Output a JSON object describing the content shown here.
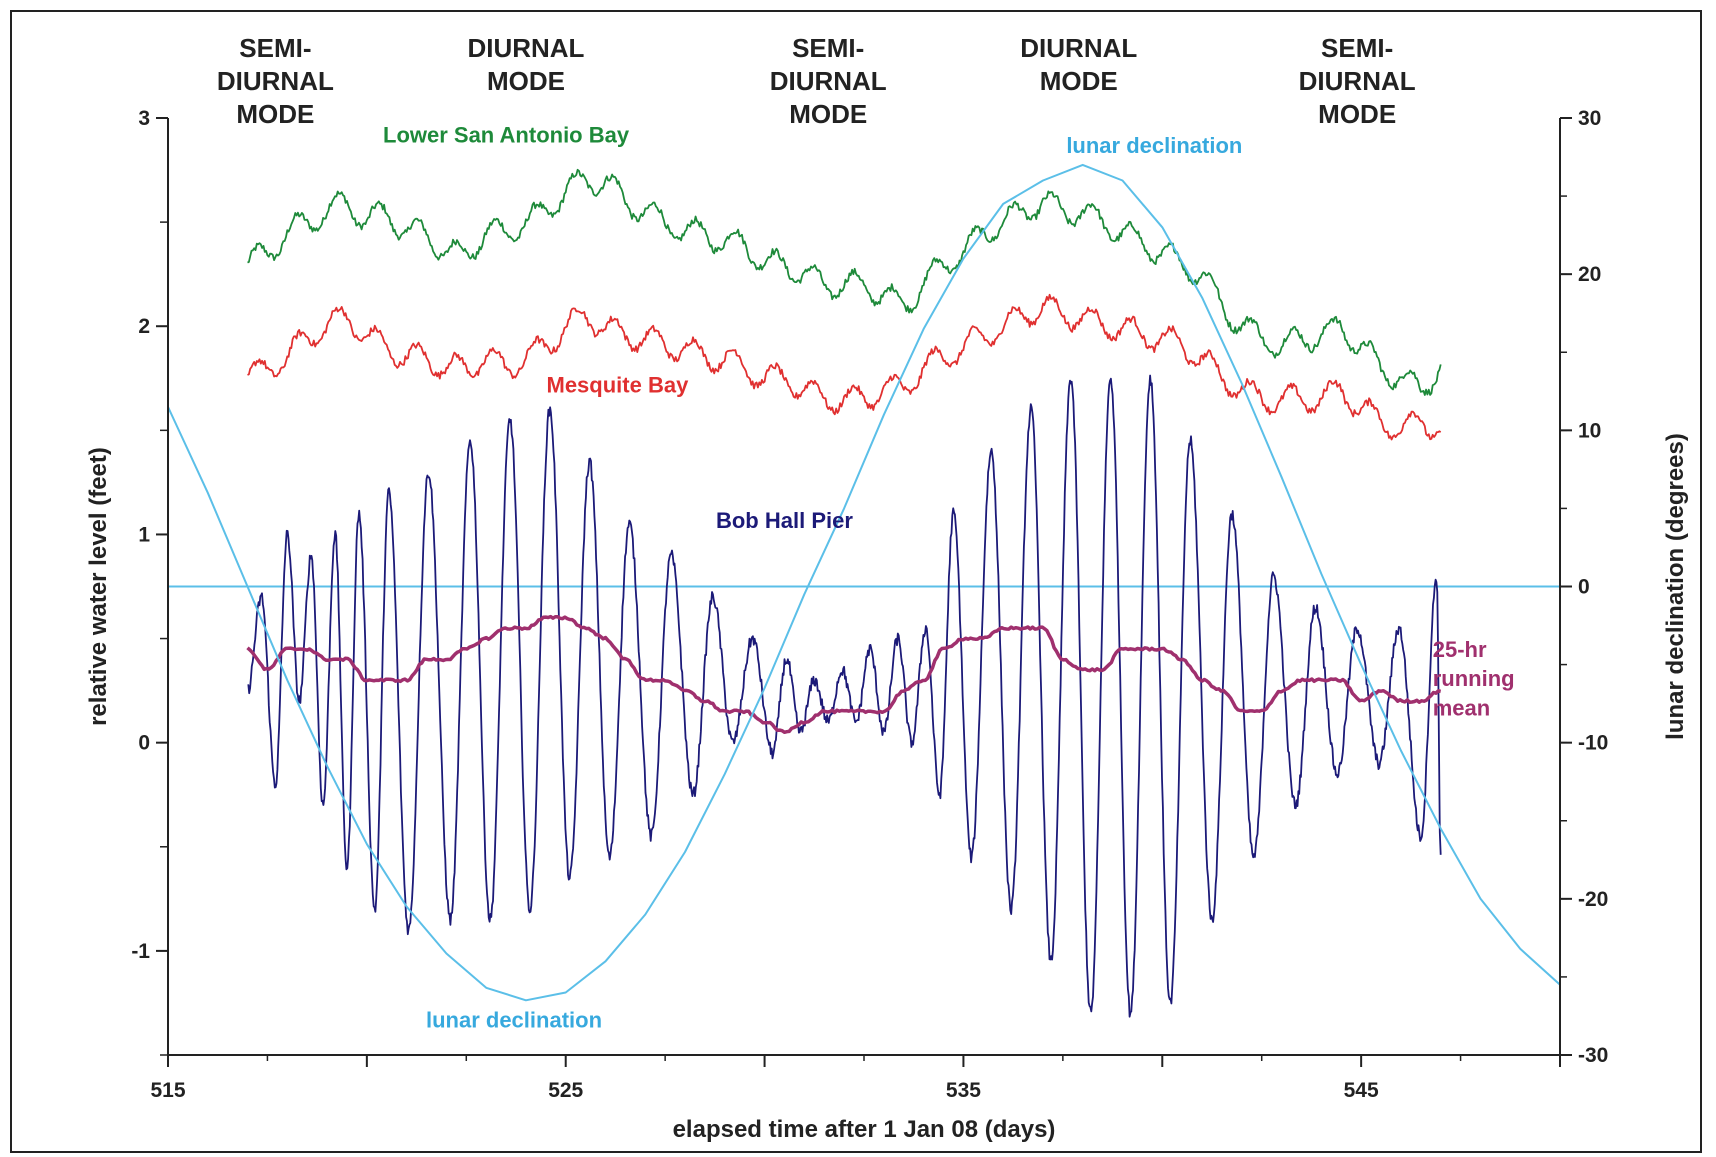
{
  "chart_data": {
    "type": "line",
    "title": "",
    "xlabel": "elapsed time after 1 Jan 08 (days)",
    "ylabel": "relative water level (feet)",
    "y2label": "lunar declination (degrees)",
    "xlim": [
      515,
      550
    ],
    "ylim": [
      -1.5,
      3
    ],
    "y2lim": [
      -30,
      30
    ],
    "xticks": [
      515,
      525,
      535,
      545
    ],
    "yticks": [
      3,
      2,
      1,
      0,
      -1
    ],
    "y2ticks": [
      30,
      20,
      10,
      0,
      -10,
      -20,
      -30
    ],
    "grid": false,
    "mode_labels": [
      {
        "x": 517.7,
        "lines": [
          "SEMI-",
          "DIURNAL",
          "MODE"
        ]
      },
      {
        "x": 524.0,
        "lines": [
          "DIURNAL",
          "MODE"
        ]
      },
      {
        "x": 531.6,
        "lines": [
          "SEMI-",
          "DIURNAL",
          "MODE"
        ]
      },
      {
        "x": 537.9,
        "lines": [
          "DIURNAL",
          "MODE"
        ]
      },
      {
        "x": 544.9,
        "lines": [
          "SEMI-",
          "DIURNAL",
          "MODE"
        ]
      }
    ],
    "series": [
      {
        "name": "Lower San Antonio Bay",
        "color": "#1e8a3a",
        "axis": "left",
        "x": [
          517.0,
          517.5,
          518.0,
          518.5,
          519.0,
          519.5,
          520.0,
          520.5,
          521.0,
          521.5,
          522.0,
          522.5,
          523.0,
          523.5,
          524.0,
          524.5,
          525.0,
          525.5,
          526.0,
          526.5,
          527.0,
          527.5,
          528.0,
          528.5,
          529.0,
          529.5,
          530.0,
          530.5,
          531.0,
          531.5,
          532.0,
          532.5,
          533.0,
          533.5,
          534.0,
          534.5,
          535.0,
          535.5,
          536.0,
          536.5,
          537.0,
          537.5,
          538.0,
          538.5,
          539.0,
          539.5,
          540.0,
          540.5,
          541.0,
          541.5,
          542.0,
          542.5,
          543.0,
          543.5,
          544.0,
          544.5,
          545.0,
          545.5,
          546.0,
          546.5,
          547.0
        ],
        "values": [
          2.3,
          2.35,
          2.45,
          2.5,
          2.55,
          2.6,
          2.5,
          2.55,
          2.45,
          2.45,
          2.35,
          2.35,
          2.45,
          2.45,
          2.5,
          2.55,
          2.65,
          2.7,
          2.7,
          2.6,
          2.55,
          2.5,
          2.45,
          2.45,
          2.4,
          2.4,
          2.3,
          2.3,
          2.25,
          2.2,
          2.2,
          2.2,
          2.15,
          2.1,
          2.2,
          2.3,
          2.35,
          2.45,
          2.5,
          2.55,
          2.6,
          2.55,
          2.55,
          2.5,
          2.45,
          2.4,
          2.35,
          2.3,
          2.25,
          2.1,
          2.0,
          1.95,
          1.9,
          1.95,
          1.95,
          2.0,
          1.9,
          1.8,
          1.75,
          1.7,
          1.8
        ]
      },
      {
        "name": "Mesquite Bay",
        "color": "#e03030",
        "axis": "left",
        "x": [
          517.0,
          517.5,
          518.0,
          518.5,
          519.0,
          519.5,
          520.0,
          520.5,
          521.0,
          521.5,
          522.0,
          522.5,
          523.0,
          523.5,
          524.0,
          524.5,
          525.0,
          525.5,
          526.0,
          526.5,
          527.0,
          527.5,
          528.0,
          528.5,
          529.0,
          529.5,
          530.0,
          530.5,
          531.0,
          531.5,
          532.0,
          532.5,
          533.0,
          533.5,
          534.0,
          534.5,
          535.0,
          535.5,
          536.0,
          536.5,
          537.0,
          537.5,
          538.0,
          538.5,
          539.0,
          539.5,
          540.0,
          540.5,
          541.0,
          541.5,
          542.0,
          542.5,
          543.0,
          543.5,
          544.0,
          544.5,
          545.0,
          545.5,
          546.0,
          546.5,
          547.0
        ],
        "values": [
          1.75,
          1.8,
          1.85,
          1.95,
          2.0,
          2.05,
          1.95,
          1.9,
          1.85,
          1.85,
          1.8,
          1.8,
          1.85,
          1.8,
          1.85,
          1.9,
          2.0,
          2.05,
          2.0,
          1.95,
          1.95,
          1.9,
          1.9,
          1.85,
          1.85,
          1.8,
          1.75,
          1.75,
          1.7,
          1.65,
          1.65,
          1.65,
          1.7,
          1.7,
          1.8,
          1.85,
          1.9,
          1.95,
          2.0,
          2.05,
          2.1,
          2.05,
          2.05,
          2.0,
          2.0,
          1.95,
          1.95,
          1.9,
          1.85,
          1.75,
          1.7,
          1.65,
          1.65,
          1.65,
          1.65,
          1.7,
          1.6,
          1.55,
          1.5,
          1.55,
          1.5
        ]
      },
      {
        "name": "Bob Hall Pier",
        "color": "#1c1a78",
        "axis": "left",
        "x": [
          517.0,
          517.35,
          517.7,
          518.0,
          518.3,
          518.6,
          518.9,
          519.2,
          519.5,
          519.8,
          520.2,
          520.55,
          521.05,
          521.55,
          522.1,
          522.6,
          523.1,
          523.6,
          524.1,
          524.6,
          525.1,
          525.6,
          526.1,
          526.6,
          527.15,
          527.65,
          528.2,
          528.7,
          529.2,
          529.7,
          530.2,
          530.55,
          530.9,
          531.25,
          531.6,
          531.95,
          532.3,
          532.65,
          533.0,
          533.35,
          533.7,
          534.05,
          534.4,
          534.75,
          535.2,
          535.7,
          536.2,
          536.7,
          537.2,
          537.7,
          538.2,
          538.7,
          539.2,
          539.7,
          540.2,
          540.7,
          541.25,
          541.75,
          542.3,
          542.8,
          543.35,
          543.85,
          544.4,
          544.9,
          545.45,
          545.95,
          546.5,
          546.9,
          547.0
        ],
        "values": [
          0.25,
          0.7,
          -0.2,
          1.0,
          0.2,
          0.9,
          -0.3,
          1.0,
          -0.6,
          1.1,
          -0.8,
          1.2,
          -0.9,
          1.3,
          -0.85,
          1.45,
          -0.85,
          1.55,
          -0.8,
          1.6,
          -0.65,
          1.35,
          -0.55,
          1.05,
          -0.45,
          0.9,
          -0.25,
          0.7,
          0.0,
          0.5,
          -0.05,
          0.4,
          0.05,
          0.3,
          0.1,
          0.35,
          0.1,
          0.45,
          0.05,
          0.5,
          0.0,
          0.55,
          -0.25,
          1.1,
          -0.55,
          1.4,
          -0.8,
          1.6,
          -1.05,
          1.75,
          -1.3,
          1.75,
          -1.3,
          1.75,
          -1.25,
          1.45,
          -0.85,
          1.1,
          -0.55,
          0.8,
          -0.3,
          0.65,
          -0.15,
          0.55,
          -0.1,
          0.55,
          -0.45,
          0.8,
          -0.55
        ]
      },
      {
        "name": "25-hr running mean",
        "color": "#a0306e",
        "axis": "left",
        "x": [
          517.0,
          517.5,
          518.0,
          518.5,
          519.0,
          519.5,
          520.0,
          520.5,
          521.0,
          521.5,
          522.0,
          522.5,
          523.0,
          523.5,
          524.0,
          524.5,
          525.0,
          525.5,
          526.0,
          526.5,
          527.0,
          527.5,
          528.0,
          528.5,
          529.0,
          529.5,
          530.0,
          530.5,
          531.0,
          531.5,
          532.0,
          532.5,
          533.0,
          533.5,
          534.0,
          534.5,
          535.0,
          535.5,
          536.0,
          536.5,
          537.0,
          537.5,
          538.0,
          538.5,
          539.0,
          539.5,
          540.0,
          540.5,
          541.0,
          541.5,
          542.0,
          542.5,
          543.0,
          543.5,
          544.0,
          544.5,
          545.0,
          545.5,
          546.0,
          546.5,
          547.0
        ],
        "values": [
          0.45,
          0.35,
          0.45,
          0.45,
          0.4,
          0.4,
          0.3,
          0.3,
          0.3,
          0.4,
          0.4,
          0.45,
          0.5,
          0.55,
          0.55,
          0.6,
          0.6,
          0.55,
          0.5,
          0.4,
          0.3,
          0.3,
          0.25,
          0.2,
          0.15,
          0.15,
          0.1,
          0.05,
          0.1,
          0.15,
          0.15,
          0.15,
          0.15,
          0.25,
          0.3,
          0.45,
          0.5,
          0.5,
          0.55,
          0.55,
          0.55,
          0.4,
          0.35,
          0.35,
          0.45,
          0.45,
          0.45,
          0.4,
          0.3,
          0.25,
          0.15,
          0.15,
          0.25,
          0.3,
          0.3,
          0.3,
          0.2,
          0.25,
          0.2,
          0.2,
          0.25
        ]
      },
      {
        "name": "lunar declination",
        "color": "#5bbfe8",
        "axis": "right",
        "x": [
          515,
          516,
          517,
          518,
          519,
          520,
          521,
          522,
          523,
          524,
          525,
          526,
          527,
          528,
          529,
          530,
          531,
          532,
          533,
          534,
          535,
          536,
          537,
          538,
          539,
          540,
          541,
          542,
          543,
          544,
          545,
          546,
          547,
          548,
          549,
          550
        ],
        "values": [
          11.5,
          6,
          0,
          -6,
          -11.5,
          -16.5,
          -20.5,
          -23.5,
          -25.7,
          -26.5,
          -26,
          -24,
          -21,
          -17,
          -12,
          -6.5,
          -0.5,
          5,
          11,
          16.5,
          21,
          24.5,
          26,
          27,
          26,
          23,
          18.5,
          13,
          7,
          0.8,
          -5,
          -10.5,
          -15.5,
          -20,
          -23.2,
          -25.5
        ]
      }
    ],
    "annotations": [
      {
        "text": "Lower San Antonio Bay",
        "color": "#1e8a3a",
        "x": 523.5,
        "y": 2.92
      },
      {
        "text": "lunar declination",
        "color": "#37a9de",
        "x": 539.8,
        "y": 2.87
      },
      {
        "text": "Mesquite Bay",
        "color": "#e03030",
        "x": 526.3,
        "y": 1.72
      },
      {
        "text": "Bob Hall Pier",
        "color": "#1c1a78",
        "x": 530.5,
        "y": 1.07
      },
      {
        "text": "lunar declination",
        "color": "#37a9de",
        "x": 523.7,
        "y": -1.33
      },
      {
        "text": "25-hr",
        "color": "#a0306e",
        "x": 546.8,
        "y": 0.45
      },
      {
        "text": "running",
        "color": "#a0306e",
        "x": 546.8,
        "y": 0.31
      },
      {
        "text": "mean",
        "color": "#a0306e",
        "x": 546.8,
        "y": 0.17
      }
    ]
  }
}
